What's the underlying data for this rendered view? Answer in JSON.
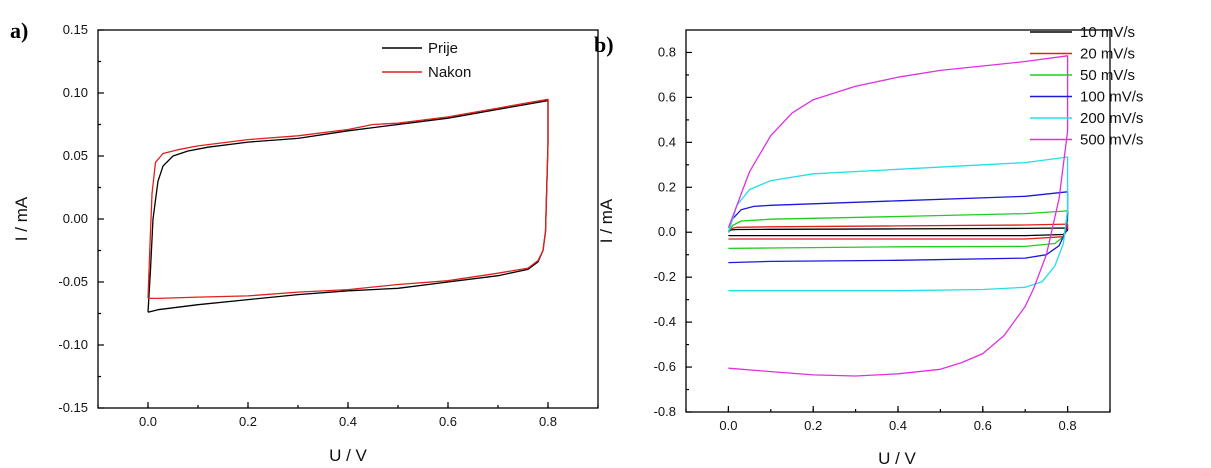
{
  "panel_labels": [
    "a)",
    "b)"
  ],
  "colors": {
    "black": "#000000",
    "red": "#e0201b",
    "green": "#22cc22",
    "blue": "#1a1adb",
    "cyan": "#22e0e8",
    "magenta": "#e030e0"
  },
  "chart_data": [
    {
      "type": "line",
      "title": "",
      "xlabel": "U / V",
      "ylabel": "I / mA",
      "xlim": [
        -0.1,
        0.9
      ],
      "ylim": [
        -0.15,
        0.15
      ],
      "xticks": [
        "0.0",
        "0.2",
        "0.4",
        "0.6",
        "0.8"
      ],
      "yticks": [
        "0.15",
        "0.10",
        "0.05",
        "0.00",
        "-0.05",
        "-0.10",
        "-0.15"
      ],
      "legend_position": "top-right",
      "series": [
        {
          "name": "Prije",
          "color": "#000000",
          "x": [
            0.0,
            0.005,
            0.01,
            0.02,
            0.03,
            0.05,
            0.08,
            0.12,
            0.2,
            0.3,
            0.4,
            0.5,
            0.6,
            0.7,
            0.8,
            0.8,
            0.795,
            0.79,
            0.78,
            0.76,
            0.7,
            0.6,
            0.5,
            0.4,
            0.3,
            0.2,
            0.1,
            0.02,
            0.0,
            0.0
          ],
          "y": [
            -0.074,
            -0.04,
            0.0,
            0.03,
            0.042,
            0.05,
            0.054,
            0.057,
            0.061,
            0.064,
            0.07,
            0.075,
            0.08,
            0.087,
            0.094,
            0.06,
            -0.01,
            -0.025,
            -0.034,
            -0.04,
            -0.045,
            -0.05,
            -0.055,
            -0.057,
            -0.06,
            -0.064,
            -0.068,
            -0.072,
            -0.074,
            -0.074
          ]
        },
        {
          "name": "Nakon",
          "color": "#e0201b",
          "x": [
            0.0,
            0.004,
            0.008,
            0.015,
            0.03,
            0.06,
            0.1,
            0.2,
            0.3,
            0.4,
            0.45,
            0.5,
            0.6,
            0.7,
            0.8,
            0.8,
            0.795,
            0.79,
            0.78,
            0.76,
            0.7,
            0.6,
            0.5,
            0.4,
            0.3,
            0.2,
            0.1,
            0.02,
            0.0
          ],
          "y": [
            -0.063,
            -0.02,
            0.02,
            0.045,
            0.052,
            0.055,
            0.058,
            0.063,
            0.066,
            0.071,
            0.075,
            0.076,
            0.081,
            0.088,
            0.095,
            0.06,
            -0.01,
            -0.025,
            -0.033,
            -0.039,
            -0.043,
            -0.049,
            -0.052,
            -0.056,
            -0.058,
            -0.061,
            -0.062,
            -0.063,
            -0.063
          ]
        }
      ]
    },
    {
      "type": "line",
      "title": "",
      "xlabel": "U / V",
      "ylabel": "I / mA",
      "xlim": [
        -0.1,
        0.9
      ],
      "ylim": [
        -0.8,
        0.9
      ],
      "xticks": [
        "0.0",
        "0.2",
        "0.4",
        "0.6",
        "0.8"
      ],
      "yticks": [
        "0.8",
        "0.6",
        "0.4",
        "0.2",
        "0.0",
        "-0.2",
        "-0.4",
        "-0.6",
        "-0.8"
      ],
      "legend_position": "top-right",
      "series": [
        {
          "name": "10 mV/s",
          "color": "#000000",
          "x": [
            0.0,
            0.005,
            0.02,
            0.1,
            0.4,
            0.7,
            0.8,
            0.8,
            0.79,
            0.7,
            0.4,
            0.1,
            0.0
          ],
          "y": [
            0.0,
            0.01,
            0.012,
            0.013,
            0.015,
            0.017,
            0.019,
            0.01,
            -0.01,
            -0.015,
            -0.015,
            -0.015,
            -0.015
          ]
        },
        {
          "name": "20 mV/s",
          "color": "#e0201b",
          "x": [
            0.0,
            0.005,
            0.02,
            0.1,
            0.4,
            0.7,
            0.8,
            0.8,
            0.79,
            0.7,
            0.4,
            0.1,
            0.0
          ],
          "y": [
            0.0,
            0.015,
            0.022,
            0.024,
            0.028,
            0.032,
            0.036,
            0.02,
            -0.02,
            -0.03,
            -0.03,
            -0.03,
            -0.03
          ]
        },
        {
          "name": "50 mV/s",
          "color": "#22cc22",
          "x": [
            0.0,
            0.01,
            0.03,
            0.1,
            0.4,
            0.7,
            0.8,
            0.8,
            0.79,
            0.77,
            0.7,
            0.4,
            0.1,
            0.0
          ],
          "y": [
            0.0,
            0.03,
            0.05,
            0.058,
            0.07,
            0.083,
            0.095,
            0.05,
            -0.02,
            -0.05,
            -0.063,
            -0.065,
            -0.07,
            -0.072
          ]
        },
        {
          "name": "100 mV/s",
          "color": "#1a1adb",
          "x": [
            0.0,
            0.01,
            0.03,
            0.06,
            0.1,
            0.4,
            0.7,
            0.8,
            0.8,
            0.795,
            0.78,
            0.75,
            0.7,
            0.4,
            0.1,
            0.0
          ],
          "y": [
            0.0,
            0.06,
            0.1,
            0.115,
            0.12,
            0.14,
            0.16,
            0.18,
            0.08,
            0.0,
            -0.06,
            -0.1,
            -0.115,
            -0.125,
            -0.13,
            -0.135
          ]
        },
        {
          "name": "200 mV/s",
          "color": "#22e0e8",
          "x": [
            0.0,
            0.02,
            0.05,
            0.1,
            0.2,
            0.4,
            0.6,
            0.7,
            0.8,
            0.8,
            0.79,
            0.77,
            0.74,
            0.7,
            0.6,
            0.4,
            0.2,
            0.0
          ],
          "y": [
            0.0,
            0.12,
            0.19,
            0.23,
            0.26,
            0.28,
            0.3,
            0.31,
            0.335,
            0.1,
            -0.05,
            -0.15,
            -0.22,
            -0.245,
            -0.255,
            -0.26,
            -0.26,
            -0.26
          ]
        },
        {
          "name": "500 mV/s",
          "color": "#e030e0",
          "x": [
            0.0,
            0.02,
            0.05,
            0.1,
            0.15,
            0.2,
            0.3,
            0.4,
            0.5,
            0.6,
            0.7,
            0.8,
            0.8,
            0.78,
            0.75,
            0.72,
            0.7,
            0.65,
            0.6,
            0.55,
            0.5,
            0.4,
            0.3,
            0.2,
            0.1,
            0.0
          ],
          "y": [
            0.02,
            0.12,
            0.27,
            0.43,
            0.53,
            0.59,
            0.65,
            0.69,
            0.72,
            0.74,
            0.76,
            0.785,
            0.45,
            0.15,
            -0.1,
            -0.25,
            -0.33,
            -0.46,
            -0.54,
            -0.58,
            -0.61,
            -0.63,
            -0.64,
            -0.635,
            -0.62,
            -0.605
          ]
        }
      ]
    }
  ]
}
